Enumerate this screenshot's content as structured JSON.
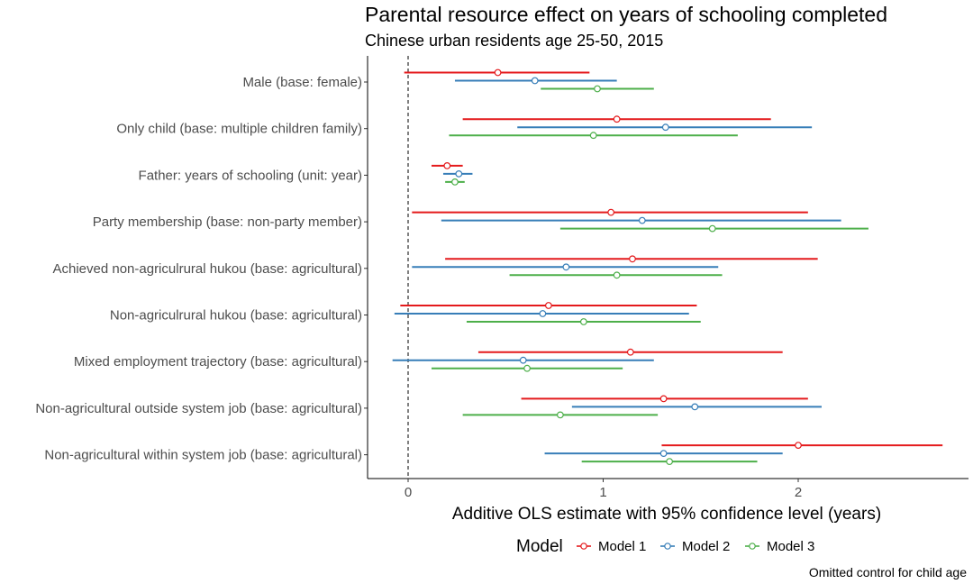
{
  "chart_data": {
    "type": "scatter",
    "subtype": "coefficient-plot-with-error-bars",
    "title": "Parental resource effect on years of schooling completed",
    "subtitle": "Chinese urban residents age 25-50, 2015",
    "xlabel": "Additive OLS estimate with 95% confidence level (years)",
    "ylabel": "",
    "xlim": [
      -0.2,
      2.8
    ],
    "x_ticks": [
      0,
      1,
      2
    ],
    "x_tick_labels": [
      "0",
      "1",
      "2"
    ],
    "reference_line": {
      "x": 0,
      "style": "dashed"
    },
    "grid": false,
    "categories": [
      "Male (base: female)",
      "Only child (base: multiple children family)",
      "Father: years of schooling (unit: year)",
      "Party membership (base: non-party member)",
      "Achieved non-agriculrural hukou (base: agricultural)",
      "Non-agriculrural hukou (base: agricultural)",
      "Mixed employment trajectory (base: agricultural)",
      "Non-agricultural outside system job (base: agricultural)",
      "Non-agricultural within system job (base: agricultural)"
    ],
    "legend": {
      "title": "Model",
      "position": "bottom"
    },
    "series": [
      {
        "name": "Model 1",
        "color": "#e41a1c",
        "estimates": [
          0.46,
          1.07,
          0.2,
          1.04,
          1.15,
          0.72,
          1.14,
          1.31,
          2.0
        ],
        "lower": [
          -0.02,
          0.28,
          0.12,
          0.02,
          0.19,
          -0.04,
          0.36,
          0.58,
          1.3
        ],
        "upper": [
          0.93,
          1.86,
          0.28,
          2.05,
          2.1,
          1.48,
          1.92,
          2.05,
          2.74
        ]
      },
      {
        "name": "Model 2",
        "color": "#377eb8",
        "estimates": [
          0.65,
          1.32,
          0.26,
          1.2,
          0.81,
          0.69,
          0.59,
          1.47,
          1.31
        ],
        "lower": [
          0.24,
          0.56,
          0.18,
          0.17,
          0.02,
          -0.07,
          -0.08,
          0.84,
          0.7
        ],
        "upper": [
          1.07,
          2.07,
          0.33,
          2.22,
          1.59,
          1.44,
          1.26,
          2.12,
          1.92
        ]
      },
      {
        "name": "Model 3",
        "color": "#4daf4a",
        "estimates": [
          0.97,
          0.95,
          0.24,
          1.56,
          1.07,
          0.9,
          0.61,
          0.78,
          1.34
        ],
        "lower": [
          0.68,
          0.21,
          0.19,
          0.78,
          0.52,
          0.3,
          0.12,
          0.28,
          0.89
        ],
        "upper": [
          1.26,
          1.69,
          0.29,
          2.36,
          1.61,
          1.5,
          1.1,
          1.28,
          1.79
        ]
      }
    ],
    "caption": "Omitted control for child age"
  }
}
